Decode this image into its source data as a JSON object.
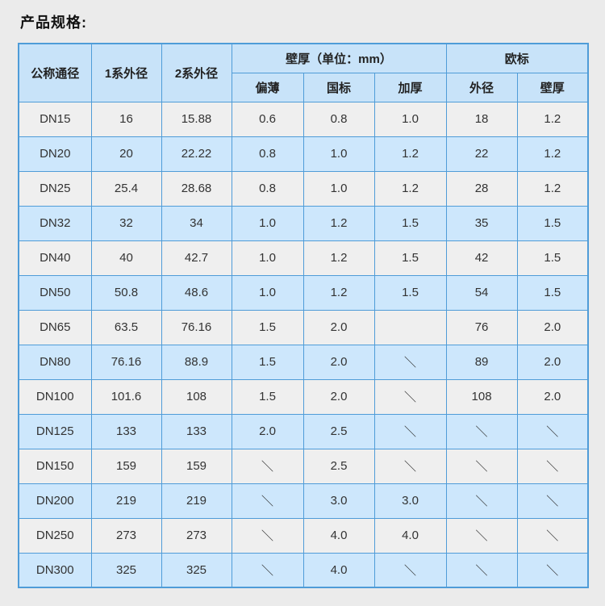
{
  "page": {
    "title": "产品规格:"
  },
  "colors": {
    "border_blue": "#4f9cd8",
    "header_bg": "#c8e3f9",
    "row_blue_bg": "#cde7fc",
    "row_gray_bg": "#efefef",
    "page_bg": "#ebebeb",
    "text": "#333333"
  },
  "table": {
    "header": {
      "col_nominal": "公称通径",
      "col_series1": "1系外径",
      "col_series2": "2系外径",
      "group_wall": "壁厚（单位：mm）",
      "group_euro": "欧标",
      "sub_thin": "偏薄",
      "sub_national": "国标",
      "sub_thick": "加厚",
      "sub_euro_od": "外径",
      "sub_euro_wall": "壁厚"
    },
    "row_keys": [
      "dn",
      "s1",
      "s2",
      "thin",
      "gb",
      "thick",
      "eu_od",
      "eu_wall"
    ],
    "rows": [
      {
        "dn": "DN15",
        "s1": "16",
        "s2": "15.88",
        "thin": "0.6",
        "gb": "0.8",
        "thick": "1.0",
        "eu_od": "18",
        "eu_wall": "1.2"
      },
      {
        "dn": "DN20",
        "s1": "20",
        "s2": "22.22",
        "thin": "0.8",
        "gb": "1.0",
        "thick": "1.2",
        "eu_od": "22",
        "eu_wall": "1.2"
      },
      {
        "dn": "DN25",
        "s1": "25.4",
        "s2": "28.68",
        "thin": "0.8",
        "gb": "1.0",
        "thick": "1.2",
        "eu_od": "28",
        "eu_wall": "1.2"
      },
      {
        "dn": "DN32",
        "s1": "32",
        "s2": "34",
        "thin": "1.0",
        "gb": "1.2",
        "thick": "1.5",
        "eu_od": "35",
        "eu_wall": "1.5"
      },
      {
        "dn": "DN40",
        "s1": "40",
        "s2": "42.7",
        "thin": "1.0",
        "gb": "1.2",
        "thick": "1.5",
        "eu_od": "42",
        "eu_wall": "1.5"
      },
      {
        "dn": "DN50",
        "s1": "50.8",
        "s2": "48.6",
        "thin": "1.0",
        "gb": "1.2",
        "thick": "1.5",
        "eu_od": "54",
        "eu_wall": "1.5"
      },
      {
        "dn": "DN65",
        "s1": "63.5",
        "s2": "76.16",
        "thin": "1.5",
        "gb": "2.0",
        "thick": "",
        "eu_od": "76",
        "eu_wall": "2.0"
      },
      {
        "dn": "DN80",
        "s1": "76.16",
        "s2": "88.9",
        "thin": "1.5",
        "gb": "2.0",
        "thick": "＼",
        "eu_od": "89",
        "eu_wall": "2.0"
      },
      {
        "dn": "DN100",
        "s1": "101.6",
        "s2": "108",
        "thin": "1.5",
        "gb": "2.0",
        "thick": "＼",
        "eu_od": "108",
        "eu_wall": "2.0"
      },
      {
        "dn": "DN125",
        "s1": "133",
        "s2": "133",
        "thin": "2.0",
        "gb": "2.5",
        "thick": "＼",
        "eu_od": "＼",
        "eu_wall": "＼"
      },
      {
        "dn": "DN150",
        "s1": "159",
        "s2": "159",
        "thin": "＼",
        "gb": "2.5",
        "thick": "＼",
        "eu_od": "＼",
        "eu_wall": "＼"
      },
      {
        "dn": "DN200",
        "s1": "219",
        "s2": "219",
        "thin": "＼",
        "gb": "3.0",
        "thick": "3.0",
        "eu_od": "＼",
        "eu_wall": "＼"
      },
      {
        "dn": "DN250",
        "s1": "273",
        "s2": "273",
        "thin": "＼",
        "gb": "4.0",
        "thick": "4.0",
        "eu_od": "＼",
        "eu_wall": "＼"
      },
      {
        "dn": "DN300",
        "s1": "325",
        "s2": "325",
        "thin": "＼",
        "gb": "4.0",
        "thick": "＼",
        "eu_od": "＼",
        "eu_wall": "＼"
      }
    ]
  }
}
